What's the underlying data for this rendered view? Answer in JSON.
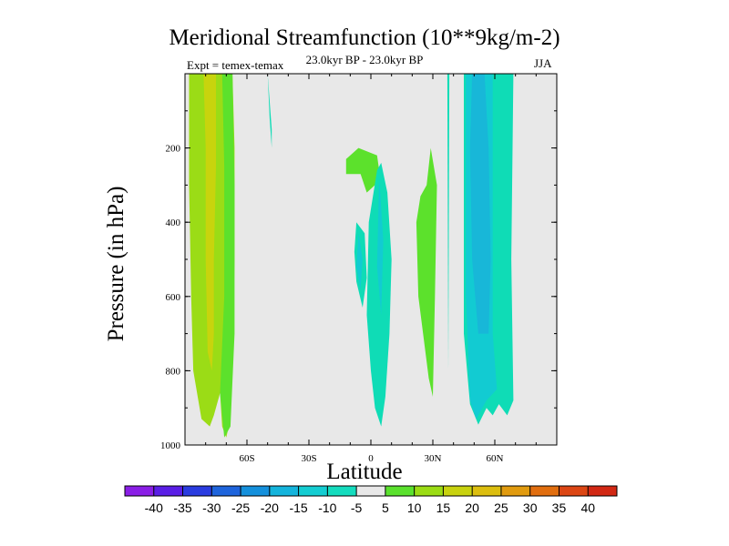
{
  "colors": {
    "background": "#e8e8e8",
    "lvl_neg15": "#18b7d8",
    "lvl_neg10": "#12cbd2",
    "lvl_neg5": "#0fdcb6",
    "lvl_5": "#5ce12c",
    "lvl_10": "#9bdc16",
    "lvl_15": "#c8d40d"
  },
  "chart_data": {
    "type": "contour",
    "title": "Meridional Streamfunction (10**9kg/m-2)",
    "subtitle": "23.0kyr BP - 23.0kyr BP",
    "experiment_label": "Expt = temex-temax",
    "season": "JJA",
    "xlabel": "Latitude",
    "ylabel": "Pressure (in hPa)",
    "xlim": [
      -90,
      90
    ],
    "ylim": [
      1000,
      0
    ],
    "x_ticks": [
      {
        "value": -60,
        "label": "60S"
      },
      {
        "value": -30,
        "label": "30S"
      },
      {
        "value": 0,
        "label": "0"
      },
      {
        "value": 30,
        "label": "30N"
      },
      {
        "value": 60,
        "label": "60N"
      }
    ],
    "y_ticks": [
      {
        "value": 200,
        "label": "200"
      },
      {
        "value": 400,
        "label": "400"
      },
      {
        "value": 600,
        "label": "600"
      },
      {
        "value": 800,
        "label": "800"
      },
      {
        "value": 1000,
        "label": "1000"
      }
    ],
    "colorbar": {
      "levels": [
        -40,
        -35,
        -30,
        -25,
        -20,
        -15,
        -10,
        -5,
        5,
        10,
        15,
        20,
        25,
        30,
        35,
        40
      ],
      "level_labels": [
        "-40",
        "-35",
        "-30",
        "-25",
        "-20",
        "-15",
        "-10",
        "-5",
        "5",
        "10",
        "15",
        "20",
        "25",
        "30",
        "35",
        "40"
      ],
      "colors": [
        "#8a1ee6",
        "#5a1ee6",
        "#2a3ce0",
        "#1e64dc",
        "#1490dc",
        "#14b4dc",
        "#14cdd2",
        "#14dcbe",
        "#e8e8e8",
        "#5ae12d",
        "#9bdc14",
        "#c8d20f",
        "#dcbe0f",
        "#e19b0f",
        "#e16e0f",
        "#dc4614",
        "#d22814"
      ]
    },
    "regions": [
      {
        "name": "sh-high-lat-positive-outer",
        "level": 10,
        "points": [
          [
            -88,
            0
          ],
          [
            -67,
            0
          ],
          [
            -66,
            200
          ],
          [
            -66,
            500
          ],
          [
            -67,
            800
          ],
          [
            -68,
            930
          ],
          [
            -70,
            980
          ],
          [
            -72,
            950
          ],
          [
            -73,
            860
          ],
          [
            -76,
            920
          ],
          [
            -78,
            950
          ],
          [
            -82,
            930
          ],
          [
            -86,
            800
          ],
          [
            -87,
            600
          ],
          [
            -88,
            300
          ]
        ]
      },
      {
        "name": "sh-high-lat-positive-inner",
        "level": 15,
        "points": [
          [
            -81,
            0
          ],
          [
            -75,
            0
          ],
          [
            -75,
            250
          ],
          [
            -76,
            500
          ],
          [
            -76,
            700
          ],
          [
            -77,
            800
          ],
          [
            -79,
            750
          ],
          [
            -80,
            500
          ],
          [
            -80,
            200
          ]
        ]
      },
      {
        "name": "sh-high-lat-positive-edge",
        "level": 5,
        "points": [
          [
            -72,
            0
          ],
          [
            -67,
            0
          ],
          [
            -66,
            300
          ],
          [
            -66,
            700
          ],
          [
            -68,
            950
          ],
          [
            -71,
            980
          ],
          [
            -73,
            860
          ],
          [
            -71,
            600
          ],
          [
            -71,
            250
          ]
        ]
      },
      {
        "name": "sh-upper-negative",
        "level": -5,
        "points": [
          [
            -50,
            0
          ],
          [
            -48,
            150
          ],
          [
            -48,
            200
          ],
          [
            -49,
            120
          ]
        ]
      },
      {
        "name": "tropical-upper-positive",
        "level": 5,
        "points": [
          [
            -12,
            230
          ],
          [
            -6,
            200
          ],
          [
            3,
            220
          ],
          [
            4,
            260
          ],
          [
            2,
            300
          ],
          [
            -2,
            320
          ],
          [
            -5,
            270
          ],
          [
            -12,
            270
          ]
        ]
      },
      {
        "name": "tropical-negative-right",
        "level": -5,
        "points": [
          [
            5,
            240
          ],
          [
            8,
            320
          ],
          [
            10,
            500
          ],
          [
            9,
            700
          ],
          [
            7,
            870
          ],
          [
            5,
            950
          ],
          [
            2,
            900
          ],
          [
            0,
            800
          ],
          [
            -2,
            650
          ],
          [
            -1,
            400
          ],
          [
            3,
            260
          ]
        ]
      },
      {
        "name": "tropical-negative-right-core",
        "level": -10,
        "points": [
          [
            4,
            280
          ],
          [
            6,
            450
          ],
          [
            5,
            650
          ],
          [
            3,
            520
          ]
        ]
      },
      {
        "name": "tropical-negative-left",
        "level": -5,
        "points": [
          [
            -7,
            400
          ],
          [
            -3,
            430
          ],
          [
            -2,
            550
          ],
          [
            -4,
            630
          ],
          [
            -7,
            560
          ],
          [
            -8,
            480
          ]
        ]
      },
      {
        "name": "tropical-negative-left-core",
        "level": -10,
        "points": [
          [
            -6,
            430
          ],
          [
            -4,
            500
          ],
          [
            -5,
            580
          ],
          [
            -7,
            520
          ]
        ]
      },
      {
        "name": "nh-subtropical-positive",
        "level": 5,
        "points": [
          [
            27,
            300
          ],
          [
            29,
            200
          ],
          [
            32,
            300
          ],
          [
            31,
            600
          ],
          [
            30,
            870
          ],
          [
            28,
            820
          ],
          [
            23,
            600
          ],
          [
            22,
            400
          ],
          [
            24,
            330
          ]
        ]
      },
      {
        "name": "nh-thin-negative-line",
        "level": -5,
        "points": [
          [
            37,
            0
          ],
          [
            38,
            0
          ],
          [
            37.5,
            800
          ]
        ]
      },
      {
        "name": "nh-high-lat-negative-outer",
        "level": -5,
        "points": [
          [
            45,
            0
          ],
          [
            69,
            0
          ],
          [
            68,
            500
          ],
          [
            69,
            880
          ],
          [
            66,
            920
          ],
          [
            62,
            890
          ],
          [
            59,
            920
          ],
          [
            56,
            900
          ],
          [
            52,
            945
          ],
          [
            48,
            890
          ],
          [
            45,
            700
          ]
        ]
      },
      {
        "name": "nh-high-lat-negative-mid",
        "level": -10,
        "points": [
          [
            46,
            0
          ],
          [
            59,
            0
          ],
          [
            59,
            700
          ],
          [
            61,
            850
          ],
          [
            56,
            880
          ],
          [
            51,
            930
          ],
          [
            48,
            880
          ],
          [
            46,
            600
          ]
        ]
      },
      {
        "name": "nh-high-lat-negative-inner",
        "level": -15,
        "points": [
          [
            49,
            0
          ],
          [
            55,
            0
          ],
          [
            57,
            200
          ],
          [
            58,
            500
          ],
          [
            57,
            700
          ],
          [
            52,
            700
          ],
          [
            49,
            500
          ],
          [
            48,
            200
          ]
        ]
      }
    ]
  }
}
